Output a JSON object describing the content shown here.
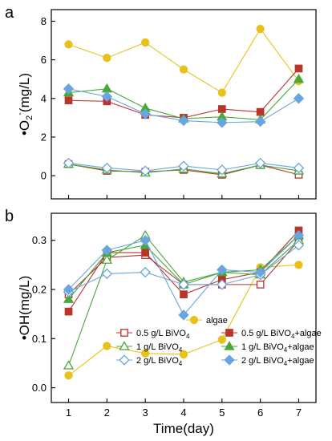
{
  "chart_data": [
    {
      "type": "line",
      "panel_letter": "a",
      "ylabel_main": "•O",
      "ylabel_sub": "2",
      "ylabel_sup": "-",
      "ylabel_rest": "(mg/L)",
      "ylim": [
        -1.2,
        8.6
      ],
      "yticks": [
        "0",
        "2",
        "4",
        "6",
        "8"
      ],
      "x": [
        1,
        2,
        3,
        4,
        5,
        6,
        7
      ],
      "series": [
        {
          "name": "algae",
          "color": "#e8c21a",
          "marker": "circle",
          "filled": true,
          "values": [
            6.8,
            6.1,
            6.9,
            5.5,
            4.3,
            7.6,
            4.9
          ]
        },
        {
          "name": "0.5 g/L BiVO4",
          "color": "#b8352c",
          "marker": "square",
          "filled": false,
          "values": [
            0.6,
            0.25,
            0.2,
            0.3,
            0.05,
            0.55,
            0.05
          ]
        },
        {
          "name": "0.5 g/L BiVO4+algae",
          "color": "#b8352c",
          "marker": "square",
          "filled": true,
          "values": [
            3.9,
            3.85,
            3.15,
            3.0,
            3.45,
            3.3,
            5.55
          ]
        },
        {
          "name": "1 g/L BiVO4",
          "color": "#48a83a",
          "marker": "triangle",
          "filled": false,
          "values": [
            0.6,
            0.3,
            0.15,
            0.35,
            0.1,
            0.55,
            0.25
          ]
        },
        {
          "name": "1 g/L BiVO4+algae",
          "color": "#48a83a",
          "marker": "triangle",
          "filled": true,
          "values": [
            4.3,
            4.5,
            3.5,
            2.95,
            3.05,
            2.9,
            5.0
          ]
        },
        {
          "name": "2 g/L BiVO4",
          "color": "#6aa5e0",
          "marker": "diamond",
          "filled": false,
          "values": [
            0.65,
            0.4,
            0.25,
            0.5,
            0.3,
            0.65,
            0.4
          ]
        },
        {
          "name": "2 g/L BiVO4+algae",
          "color": "#6aa5e0",
          "marker": "diamond",
          "filled": true,
          "values": [
            4.5,
            4.1,
            3.2,
            2.85,
            2.75,
            2.8,
            4.0
          ]
        }
      ]
    },
    {
      "type": "line",
      "panel_letter": "b",
      "ylabel_main": "•OH(mg/L)",
      "xlabel": "Time(day)",
      "ylim": [
        -0.03,
        0.355
      ],
      "yticks": [
        "0.0",
        "0.1",
        "0.2",
        "0.3"
      ],
      "xticks": [
        "1",
        "2",
        "3",
        "4",
        "5",
        "6",
        "7"
      ],
      "x": [
        1,
        2,
        3,
        4,
        5,
        6,
        7
      ],
      "series": [
        {
          "name": "algae",
          "color": "#e8c21a",
          "marker": "circle",
          "filled": true,
          "values": [
            0.025,
            0.085,
            0.07,
            0.068,
            0.098,
            0.245,
            0.25
          ]
        },
        {
          "name": "0.5 g/L BiVO4",
          "color": "#b8352c",
          "marker": "square",
          "filled": false,
          "values": [
            0.19,
            0.265,
            0.27,
            0.21,
            0.21,
            0.21,
            0.3
          ]
        },
        {
          "name": "0.5 g/L BiVO4+algae",
          "color": "#b8352c",
          "marker": "square",
          "filled": true,
          "values": [
            0.155,
            0.275,
            0.275,
            0.19,
            0.22,
            0.235,
            0.32
          ]
        },
        {
          "name": "1 g/L BiVO4",
          "color": "#48a83a",
          "marker": "triangle",
          "filled": false,
          "values": [
            0.045,
            0.26,
            0.31,
            0.215,
            0.235,
            0.23,
            0.3
          ]
        },
        {
          "name": "1 g/L BiVO4+algae",
          "color": "#48a83a",
          "marker": "triangle",
          "filled": true,
          "values": [
            0.18,
            0.275,
            0.29,
            0.21,
            0.235,
            0.24,
            0.31
          ]
        },
        {
          "name": "2 g/L BiVO4",
          "color": "#6aa5e0",
          "marker": "diamond",
          "filled": false,
          "values": [
            0.195,
            0.232,
            0.235,
            0.21,
            0.21,
            0.23,
            0.29
          ]
        },
        {
          "name": "2 g/L BiVO4+algae",
          "color": "#6aa5e0",
          "marker": "diamond",
          "filled": true,
          "values": [
            0.2,
            0.28,
            0.3,
            0.148,
            0.24,
            0.235,
            0.31
          ]
        }
      ],
      "legend": [
        {
          "main": "algae",
          "sub": ""
        },
        {
          "main": "0.5 g/L BiVO",
          "sub": "4",
          "tail": ""
        },
        {
          "main": "0.5 g/L BiVO",
          "sub": "4",
          "tail": "+algae"
        },
        {
          "main": "1 g/L BiVO",
          "sub": "4",
          "tail": ""
        },
        {
          "main": "1 g/L BiVO",
          "sub": "4",
          "tail": "+algae"
        },
        {
          "main": "2 g/L BiVO",
          "sub": "4",
          "tail": ""
        },
        {
          "main": "2 g/L BiVO",
          "sub": "4",
          "tail": "+algae"
        }
      ]
    }
  ]
}
